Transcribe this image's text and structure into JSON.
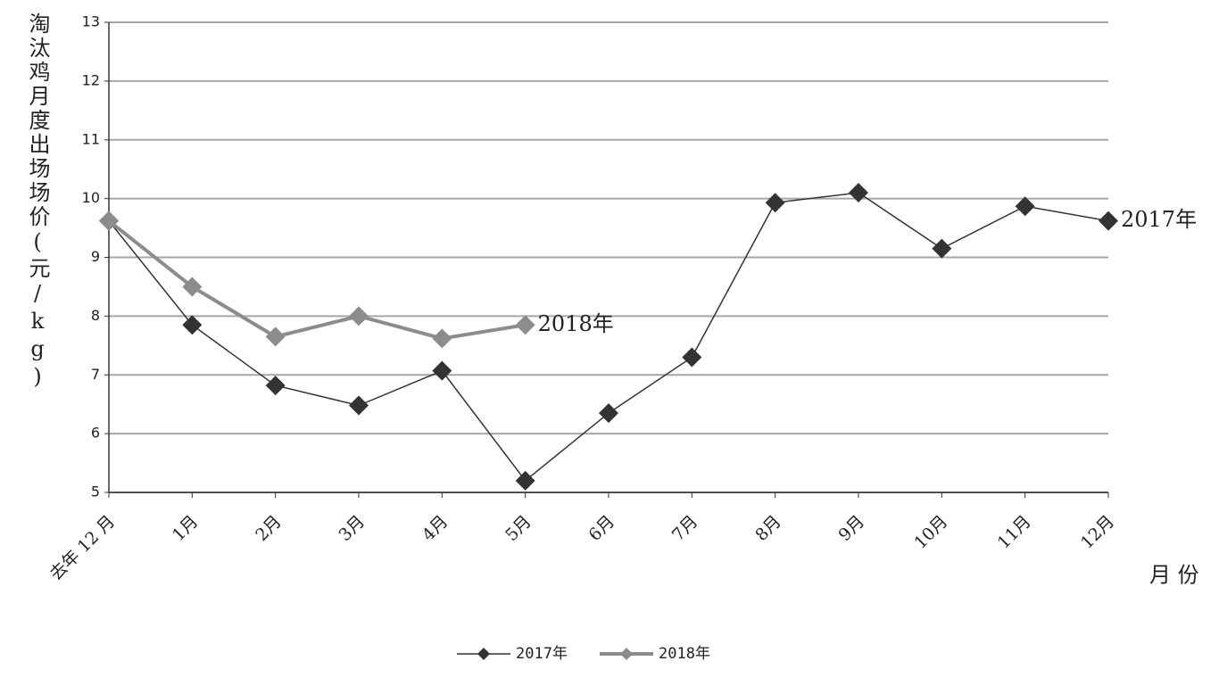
{
  "chart_data": {
    "type": "line",
    "y_label": "淘汰鸡月度出场场价(元/kg)",
    "x_label": "月 份",
    "categories": [
      "去年 12 月",
      "1月",
      "2月",
      "3月",
      "4月",
      "5月",
      "6月",
      "7月",
      "8月",
      "9月",
      "10月",
      "11月",
      "12月"
    ],
    "series": [
      {
        "name": "2017年",
        "color": "#333333",
        "values": [
          9.62,
          7.85,
          6.82,
          6.48,
          7.07,
          5.2,
          6.35,
          7.3,
          9.93,
          10.1,
          9.15,
          9.87,
          9.62
        ]
      },
      {
        "name": "2018年",
        "color": "#8c8c8c",
        "values": [
          9.62,
          8.5,
          7.65,
          8.0,
          7.62,
          7.85,
          null,
          null,
          null,
          null,
          null,
          null,
          null
        ]
      }
    ],
    "annotations": [
      "2017年",
      "2018年"
    ],
    "ylim": [
      5,
      13
    ],
    "yticks": [
      5,
      6,
      7,
      8,
      9,
      10,
      11,
      12,
      13
    ],
    "grid": true
  }
}
